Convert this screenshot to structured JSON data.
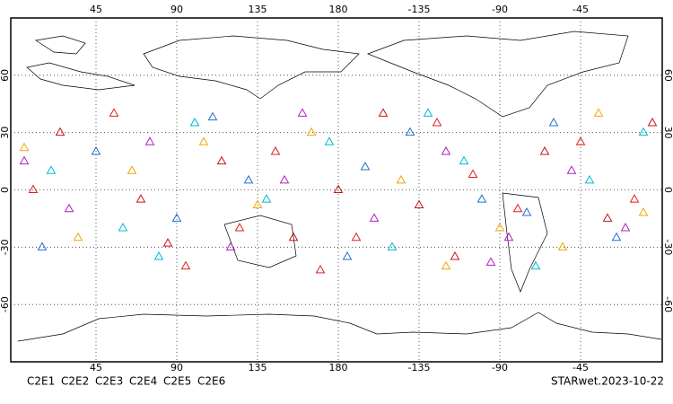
{
  "chart_data": {
    "type": "scatter",
    "xlim": [
      0,
      360
    ],
    "ylim": [
      -90,
      90
    ],
    "xticks": [
      45,
      90,
      135,
      180,
      {
        "value": 225,
        "label": "-135"
      },
      {
        "value": 270,
        "label": "-90"
      },
      {
        "value": 315,
        "label": "-45"
      }
    ],
    "yticks": [
      -60,
      -30,
      0,
      30,
      60
    ],
    "grid": true,
    "series": [
      {
        "name": "C2E1",
        "color": "#00b8d8",
        "x": [
          20,
          60,
          100,
          140,
          175,
          210,
          250,
          290,
          320,
          350,
          80,
          230
        ],
        "y": [
          10,
          -20,
          35,
          -5,
          25,
          -30,
          15,
          -40,
          5,
          30,
          -35,
          40
        ]
      },
      {
        "name": "C2E2",
        "color": "#b020c0",
        "x": [
          30,
          75,
          120,
          160,
          200,
          240,
          275,
          310,
          340,
          5,
          150,
          265
        ],
        "y": [
          -10,
          25,
          -30,
          40,
          -15,
          20,
          -25,
          10,
          -20,
          15,
          5,
          -38
        ]
      },
      {
        "name": "C2E3",
        "color": "#2070d0",
        "x": [
          45,
          90,
          130,
          185,
          220,
          260,
          300,
          335,
          15,
          110,
          195,
          285
        ],
        "y": [
          20,
          -15,
          5,
          -35,
          30,
          -5,
          35,
          -25,
          -30,
          38,
          12,
          -12
        ]
      },
      {
        "name": "C2E4",
        "color": "#e02020",
        "x": [
          10,
          55,
          95,
          145,
          190,
          235,
          280,
          315,
          345,
          125,
          170,
          255
        ],
        "y": [
          0,
          40,
          -40,
          20,
          -25,
          35,
          -10,
          25,
          -5,
          -20,
          -42,
          8
        ]
      },
      {
        "name": "C2E5",
        "color": "#c81414",
        "x": [
          25,
          70,
          115,
          155,
          205,
          245,
          295,
          330,
          355,
          85,
          180,
          225
        ],
        "y": [
          30,
          -5,
          15,
          -25,
          40,
          -35,
          20,
          -15,
          35,
          -28,
          0,
          -8
        ]
      },
      {
        "name": "C2E6",
        "color": "#f0a800",
        "x": [
          35,
          65,
          105,
          135,
          215,
          270,
          305,
          325,
          5,
          165,
          240,
          350
        ],
        "y": [
          -25,
          10,
          25,
          -8,
          5,
          -20,
          -30,
          40,
          22,
          30,
          -40,
          -12
        ]
      }
    ],
    "footer": "STARwet.2023-10-22"
  }
}
